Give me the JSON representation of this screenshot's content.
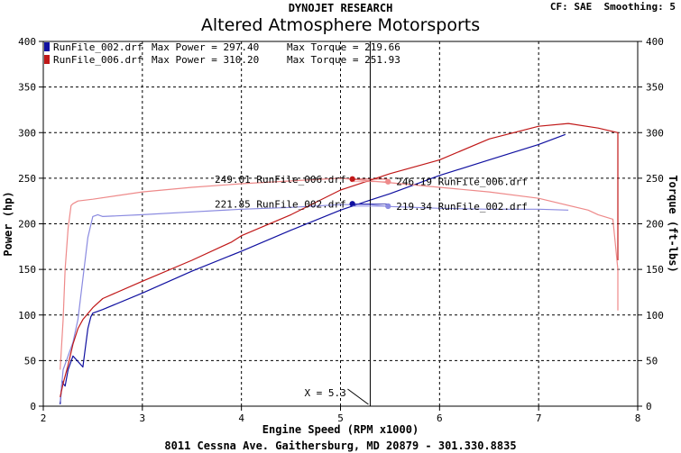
{
  "header": {
    "brand": "DYNOJET RESEARCH",
    "title": "Altered Atmosphere Motorsports",
    "settings": "CF: SAE  Smoothing: 5"
  },
  "footer": "8011 Cessna Ave. Gaithersburg, MD 20879 - 301.330.8835",
  "colors": {
    "run002_power": "#1010a0",
    "run002_torque": "#8a8ae0",
    "run006_power": "#c01818",
    "run006_torque": "#ee8a8a"
  },
  "chart_data": {
    "type": "line",
    "xlabel": "Engine Speed (RPM x1000)",
    "ylabel": "Power (hp)",
    "y2label": "Torque (ft-lbs)",
    "xlim": [
      2,
      8
    ],
    "ylim": [
      0,
      400
    ],
    "y2lim": [
      0,
      400
    ],
    "x_ticks": [
      "2",
      "3",
      "4",
      "5",
      "6",
      "7",
      "8"
    ],
    "y_ticks": [
      "0",
      "50",
      "100",
      "150",
      "200",
      "250",
      "300",
      "350",
      "400"
    ],
    "grid": true,
    "legend_position": "top-left",
    "legend": [
      {
        "label": "RunFile_002.drf",
        "max_power_label": "Max Power = 297.40",
        "max_torque_label": "Max Torque = 219.66",
        "color": "#1010a0"
      },
      {
        "label": "RunFile_006.drf",
        "max_power_label": "Max Power = 310.20",
        "max_torque_label": "Max Torque = 251.93",
        "color": "#c01818"
      }
    ],
    "series": [
      {
        "name": "RunFile_002.drf",
        "quantity": "power",
        "axis": "left",
        "color": "#1010a0",
        "x": [
          2.17,
          2.18,
          2.19,
          2.2,
          2.22,
          2.25,
          2.3,
          2.4,
          2.42,
          2.45,
          2.48,
          2.5,
          2.6,
          3.0,
          3.5,
          4.0,
          4.5,
          5.0,
          5.3,
          5.5,
          6.0,
          6.5,
          7.0,
          7.27
        ],
        "y": [
          2,
          15,
          28,
          25,
          22,
          40,
          55,
          43,
          60,
          85,
          98,
          102,
          106,
          124,
          148,
          170,
          193,
          215,
          226,
          233,
          253,
          270,
          287,
          298
        ]
      },
      {
        "name": "RunFile_002.drf",
        "quantity": "torque",
        "axis": "right",
        "color": "#8a8ae0",
        "x": [
          2.17,
          2.2,
          2.3,
          2.35,
          2.4,
          2.45,
          2.5,
          2.55,
          2.6,
          3.0,
          3.5,
          4.0,
          4.5,
          5.0,
          5.3,
          5.5,
          6.0,
          6.5,
          7.0,
          7.3
        ],
        "y": [
          5,
          40,
          70,
          95,
          140,
          185,
          208,
          210,
          208,
          210,
          213,
          216,
          218,
          221,
          221,
          219,
          217,
          216,
          216,
          215
        ]
      },
      {
        "name": "RunFile_006.drf",
        "quantity": "power",
        "axis": "left",
        "color": "#c01818",
        "x": [
          2.17,
          2.2,
          2.25,
          2.3,
          2.35,
          2.4,
          2.5,
          2.6,
          3.0,
          3.5,
          3.8,
          3.9,
          4.0,
          4.5,
          5.0,
          5.5,
          6.0,
          6.5,
          7.0,
          7.3,
          7.6,
          7.8,
          7.8,
          7.8
        ],
        "y": [
          10,
          25,
          45,
          68,
          85,
          95,
          108,
          118,
          137,
          160,
          175,
          180,
          187,
          210,
          237,
          255,
          270,
          293,
          307,
          310,
          305,
          300,
          260,
          160
        ]
      },
      {
        "name": "RunFile_006.drf",
        "quantity": "torque",
        "axis": "right",
        "color": "#ee8a8a",
        "x": [
          2.17,
          2.2,
          2.22,
          2.25,
          2.28,
          2.3,
          2.35,
          2.5,
          3.0,
          3.5,
          4.0,
          4.5,
          5.0,
          5.3,
          5.5,
          6.0,
          6.5,
          7.0,
          7.5,
          7.6,
          7.75,
          7.8,
          7.8
        ],
        "y": [
          40,
          95,
          150,
          195,
          220,
          222,
          225,
          227,
          235,
          240,
          244,
          247,
          250,
          247,
          245,
          240,
          235,
          228,
          215,
          210,
          205,
          150,
          105
        ]
      }
    ],
    "markers": [
      {
        "x": 5.12,
        "y": 249.01,
        "label": "249.01 RunFile_006.drf",
        "color": "#c01818",
        "side": "left"
      },
      {
        "x": 5.12,
        "y": 221.85,
        "label": "221.85 RunFile_002.drf",
        "color": "#1010a0",
        "side": "left"
      },
      {
        "x": 5.48,
        "y": 246.19,
        "label": "246.19 RunFile_006.drf",
        "color": "#ee8a8a",
        "side": "right"
      },
      {
        "x": 5.48,
        "y": 219.34,
        "label": "219.34 RunFile_002.drf",
        "color": "#8a8ae0",
        "side": "right"
      }
    ],
    "cursor": {
      "x": 5.3,
      "label": "X = 5.3"
    }
  }
}
